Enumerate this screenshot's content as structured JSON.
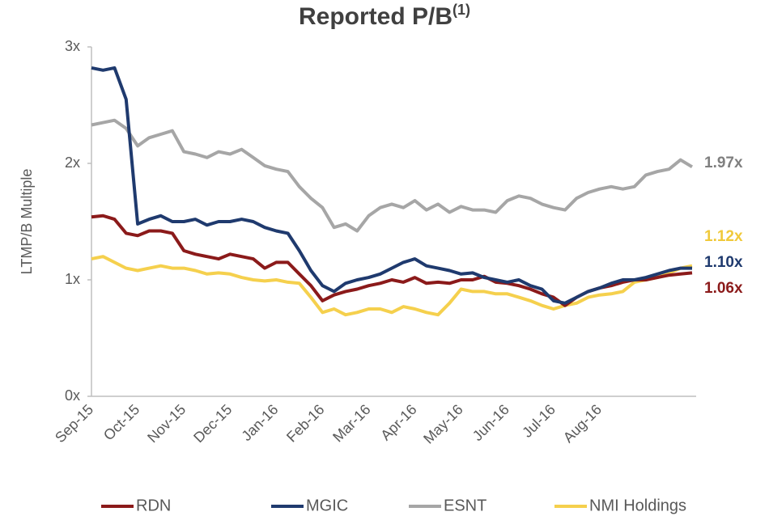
{
  "chart_data": {
    "type": "line",
    "title": "Reported P/B",
    "title_note": "(1)",
    "ylabel": "LTMP/B Multiple",
    "categories": [
      "Sep-15",
      null,
      null,
      null,
      "Oct-15",
      null,
      null,
      null,
      "Nov-15",
      null,
      null,
      null,
      "Dec-15",
      null,
      null,
      null,
      "Jan-16",
      null,
      null,
      null,
      "Feb-16",
      null,
      null,
      null,
      "Mar-16",
      null,
      null,
      null,
      "Apr-16",
      null,
      null,
      null,
      "May-16",
      null,
      null,
      null,
      "Jun-16",
      null,
      null,
      null,
      "Jul-16",
      null,
      null,
      null,
      "Aug-16",
      null,
      null,
      null,
      null,
      null,
      null,
      null,
      null
    ],
    "ylim": [
      0,
      3
    ],
    "yticks": [
      {
        "value": 0,
        "label": "0x"
      },
      {
        "value": 1,
        "label": "1x"
      },
      {
        "value": 2,
        "label": "2x"
      },
      {
        "value": 3,
        "label": "3x"
      }
    ],
    "series": [
      {
        "name": "RDN",
        "color": "#8b1a1a",
        "end_label": "1.06x",
        "values": [
          1.54,
          1.55,
          1.52,
          1.4,
          1.38,
          1.42,
          1.42,
          1.4,
          1.25,
          1.22,
          1.2,
          1.18,
          1.22,
          1.2,
          1.18,
          1.1,
          1.15,
          1.15,
          1.05,
          0.95,
          0.82,
          0.87,
          0.9,
          0.92,
          0.95,
          0.97,
          1.0,
          0.98,
          1.02,
          0.97,
          0.98,
          0.97,
          1.0,
          1.0,
          1.03,
          0.98,
          0.97,
          0.95,
          0.92,
          0.88,
          0.85,
          0.78,
          0.85,
          0.9,
          0.93,
          0.95,
          0.98,
          1.0,
          1.0,
          1.02,
          1.04,
          1.05,
          1.06
        ]
      },
      {
        "name": "MGIC",
        "color": "#1f3a6e",
        "end_label": "1.10x",
        "values": [
          2.82,
          2.8,
          2.82,
          2.55,
          1.48,
          1.52,
          1.55,
          1.5,
          1.5,
          1.52,
          1.47,
          1.5,
          1.5,
          1.52,
          1.5,
          1.45,
          1.42,
          1.4,
          1.25,
          1.08,
          0.95,
          0.9,
          0.97,
          1.0,
          1.02,
          1.05,
          1.1,
          1.15,
          1.18,
          1.12,
          1.1,
          1.08,
          1.05,
          1.06,
          1.02,
          1.0,
          0.98,
          1.0,
          0.95,
          0.92,
          0.82,
          0.8,
          0.85,
          0.9,
          0.93,
          0.97,
          1.0,
          1.0,
          1.02,
          1.05,
          1.08,
          1.1,
          1.1
        ]
      },
      {
        "name": "ESNT",
        "color": "#a6a6a6",
        "end_label": "1.97x",
        "values": [
          2.33,
          2.35,
          2.37,
          2.3,
          2.15,
          2.22,
          2.25,
          2.28,
          2.1,
          2.08,
          2.05,
          2.1,
          2.08,
          2.12,
          2.05,
          1.98,
          1.95,
          1.93,
          1.8,
          1.7,
          1.62,
          1.45,
          1.48,
          1.42,
          1.55,
          1.62,
          1.65,
          1.62,
          1.68,
          1.6,
          1.65,
          1.58,
          1.63,
          1.6,
          1.6,
          1.58,
          1.68,
          1.72,
          1.7,
          1.65,
          1.62,
          1.6,
          1.7,
          1.75,
          1.78,
          1.8,
          1.78,
          1.8,
          1.9,
          1.93,
          1.95,
          2.03,
          1.97
        ]
      },
      {
        "name": "NMI Holdings",
        "color": "#f5d04d",
        "end_label": "1.12x",
        "values": [
          1.18,
          1.2,
          1.15,
          1.1,
          1.08,
          1.1,
          1.12,
          1.1,
          1.1,
          1.08,
          1.05,
          1.06,
          1.05,
          1.02,
          1.0,
          0.99,
          1.0,
          0.98,
          0.97,
          0.85,
          0.72,
          0.75,
          0.7,
          0.72,
          0.75,
          0.75,
          0.72,
          0.77,
          0.75,
          0.72,
          0.7,
          0.8,
          0.92,
          0.9,
          0.9,
          0.88,
          0.88,
          0.85,
          0.82,
          0.78,
          0.75,
          0.78,
          0.8,
          0.85,
          0.87,
          0.88,
          0.9,
          0.98,
          1.0,
          1.02,
          1.06,
          1.1,
          1.12
        ]
      }
    ]
  }
}
